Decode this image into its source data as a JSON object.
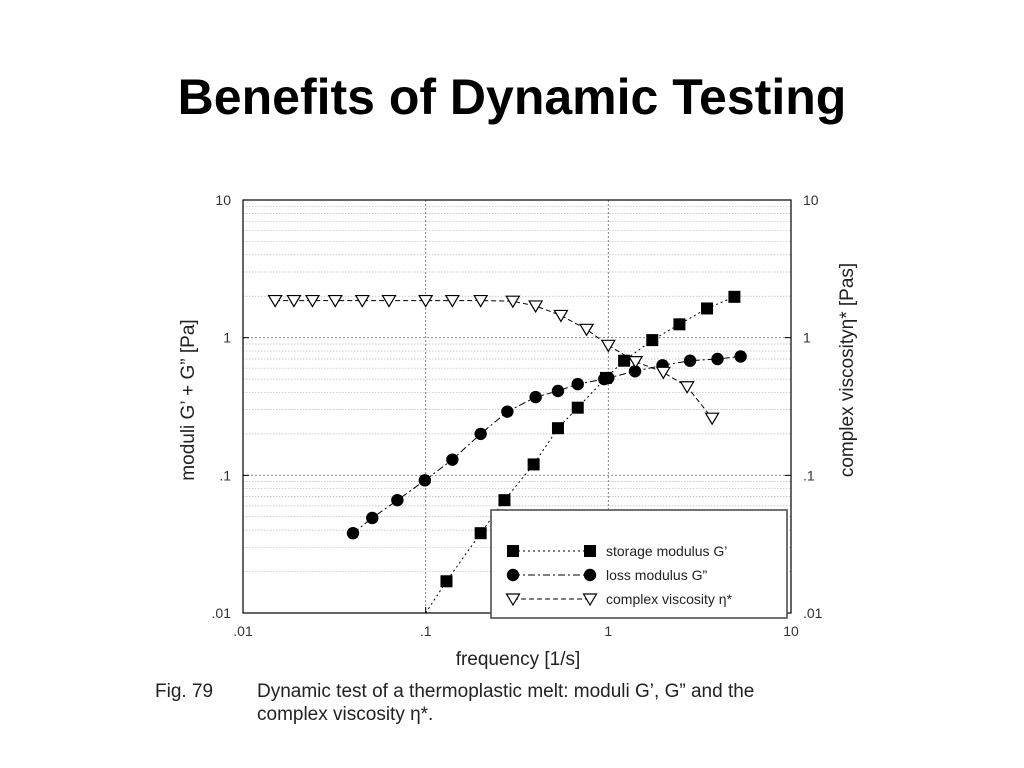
{
  "slide": {
    "title": "Benefits of Dynamic Testing"
  },
  "caption": {
    "label": "Fig. 79",
    "text_line1": "Dynamic test of a thermoplastic melt: moduli G’, G” and the",
    "text_line2": "complex viscosity η*."
  },
  "chart_data": {
    "type": "scatter",
    "xscale": "log",
    "yscale": "log",
    "xlim": [
      0.01,
      10
    ],
    "ylim": [
      0.01,
      10
    ],
    "y2lim": [
      0.01,
      10
    ],
    "grid": true,
    "legend_position": "bottom-right",
    "xlabel": "frequency [1/s]",
    "ylabel": "moduli G’ + G” [Pa]",
    "y2label": "complex viscosityη*   [Pas]",
    "x_ticks": [
      ".01",
      ".1",
      "1",
      "10"
    ],
    "y_ticks": [
      ".01",
      ".1",
      "1",
      "10"
    ],
    "y2_ticks": [
      ".01",
      ".1",
      "1",
      "10"
    ],
    "series": [
      {
        "name": "storage modulus G’",
        "marker": "square",
        "line": "dotted",
        "axis": "left",
        "points": [
          [
            0.1,
            0.01
          ],
          [
            0.13,
            0.017
          ],
          [
            0.2,
            0.038
          ],
          [
            0.27,
            0.066
          ],
          [
            0.39,
            0.12
          ],
          [
            0.53,
            0.22
          ],
          [
            0.68,
            0.31
          ],
          [
            0.97,
            0.51
          ],
          [
            1.22,
            0.68
          ],
          [
            1.74,
            0.96
          ],
          [
            2.45,
            1.25
          ],
          [
            3.47,
            1.63
          ],
          [
            4.9,
            1.98
          ]
        ]
      },
      {
        "name": "loss modulus G”",
        "marker": "circle",
        "line": "dash-dot",
        "axis": "left",
        "points": [
          [
            0.04,
            0.038
          ],
          [
            0.051,
            0.049
          ],
          [
            0.07,
            0.066
          ],
          [
            0.099,
            0.092
          ],
          [
            0.14,
            0.13
          ],
          [
            0.2,
            0.2
          ],
          [
            0.28,
            0.29
          ],
          [
            0.4,
            0.37
          ],
          [
            0.53,
            0.41
          ],
          [
            0.68,
            0.46
          ],
          [
            0.95,
            0.5
          ],
          [
            1.0,
            0.51
          ],
          [
            1.4,
            0.57
          ],
          [
            1.98,
            0.63
          ],
          [
            2.8,
            0.68
          ],
          [
            3.96,
            0.7
          ],
          [
            5.3,
            0.73
          ]
        ]
      },
      {
        "name": "complex viscosity η*",
        "marker": "triangle-down-open",
        "line": "dashed",
        "axis": "right",
        "points": [
          [
            0.015,
            1.86
          ],
          [
            0.019,
            1.86
          ],
          [
            0.024,
            1.86
          ],
          [
            0.032,
            1.86
          ],
          [
            0.045,
            1.86
          ],
          [
            0.063,
            1.86
          ],
          [
            0.1,
            1.86
          ],
          [
            0.14,
            1.86
          ],
          [
            0.2,
            1.86
          ],
          [
            0.3,
            1.84
          ],
          [
            0.4,
            1.7
          ],
          [
            0.55,
            1.45
          ],
          [
            0.76,
            1.15
          ],
          [
            1.0,
            0.88
          ],
          [
            1.41,
            0.67
          ],
          [
            2.0,
            0.56
          ],
          [
            2.7,
            0.44
          ],
          [
            3.7,
            0.26
          ]
        ]
      }
    ]
  }
}
